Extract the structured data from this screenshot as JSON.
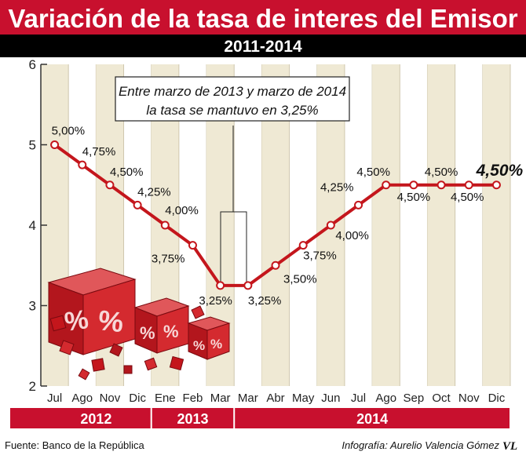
{
  "header": {
    "title": "Variación de la tasa de interes del Emisor",
    "subtitle": "2011-2014"
  },
  "annotation": {
    "line1": "Entre marzo de 2013 y marzo de 2014",
    "line2": "la tasa se mantuvo en 3,25%"
  },
  "footer": {
    "source": "Fuente: Banco de la República",
    "credit": "Infografía: Aurelio Valencia Gómez",
    "logo_text": "VL"
  },
  "colors": {
    "accent": "#c8102e",
    "line": "#c4161c",
    "band": "#000000",
    "stripe": "#efe9d4"
  },
  "chart_data": {
    "type": "line",
    "title": "Variación de la tasa de interes del Emisor",
    "subtitle": "2011-2014",
    "xlabel": "",
    "ylabel": "",
    "ylim": [
      2,
      6
    ],
    "yticks": [
      "2",
      "3",
      "4",
      "5",
      "6"
    ],
    "grid": "vertical",
    "categories": [
      "Jul",
      "Ago",
      "Nov",
      "Dic",
      "Ene",
      "Feb",
      "Mar",
      "Mar",
      "Abr",
      "May",
      "Jun",
      "Jul",
      "Ago",
      "Sep",
      "Oct",
      "Nov",
      "Dic"
    ],
    "values": [
      5.0,
      4.75,
      4.5,
      4.25,
      4.0,
      3.75,
      3.25,
      3.25,
      3.5,
      3.75,
      4.0,
      4.25,
      4.5,
      4.5,
      4.5,
      4.5,
      4.5
    ],
    "labels": [
      "5,00%",
      "4,75%",
      "4,50%",
      "4,25%",
      "4,00%",
      "3,75%",
      "3,25%",
      "3,25%",
      "3,50%",
      "3,75%",
      "4,00%",
      "4,25%",
      "4,50%",
      "4,50%",
      "4,50%",
      "4,50%",
      "4,50%"
    ],
    "years": [
      {
        "label": "2012",
        "count": 4
      },
      {
        "label": "2013",
        "count": 3
      },
      {
        "label": "2014",
        "count": 10
      }
    ]
  }
}
